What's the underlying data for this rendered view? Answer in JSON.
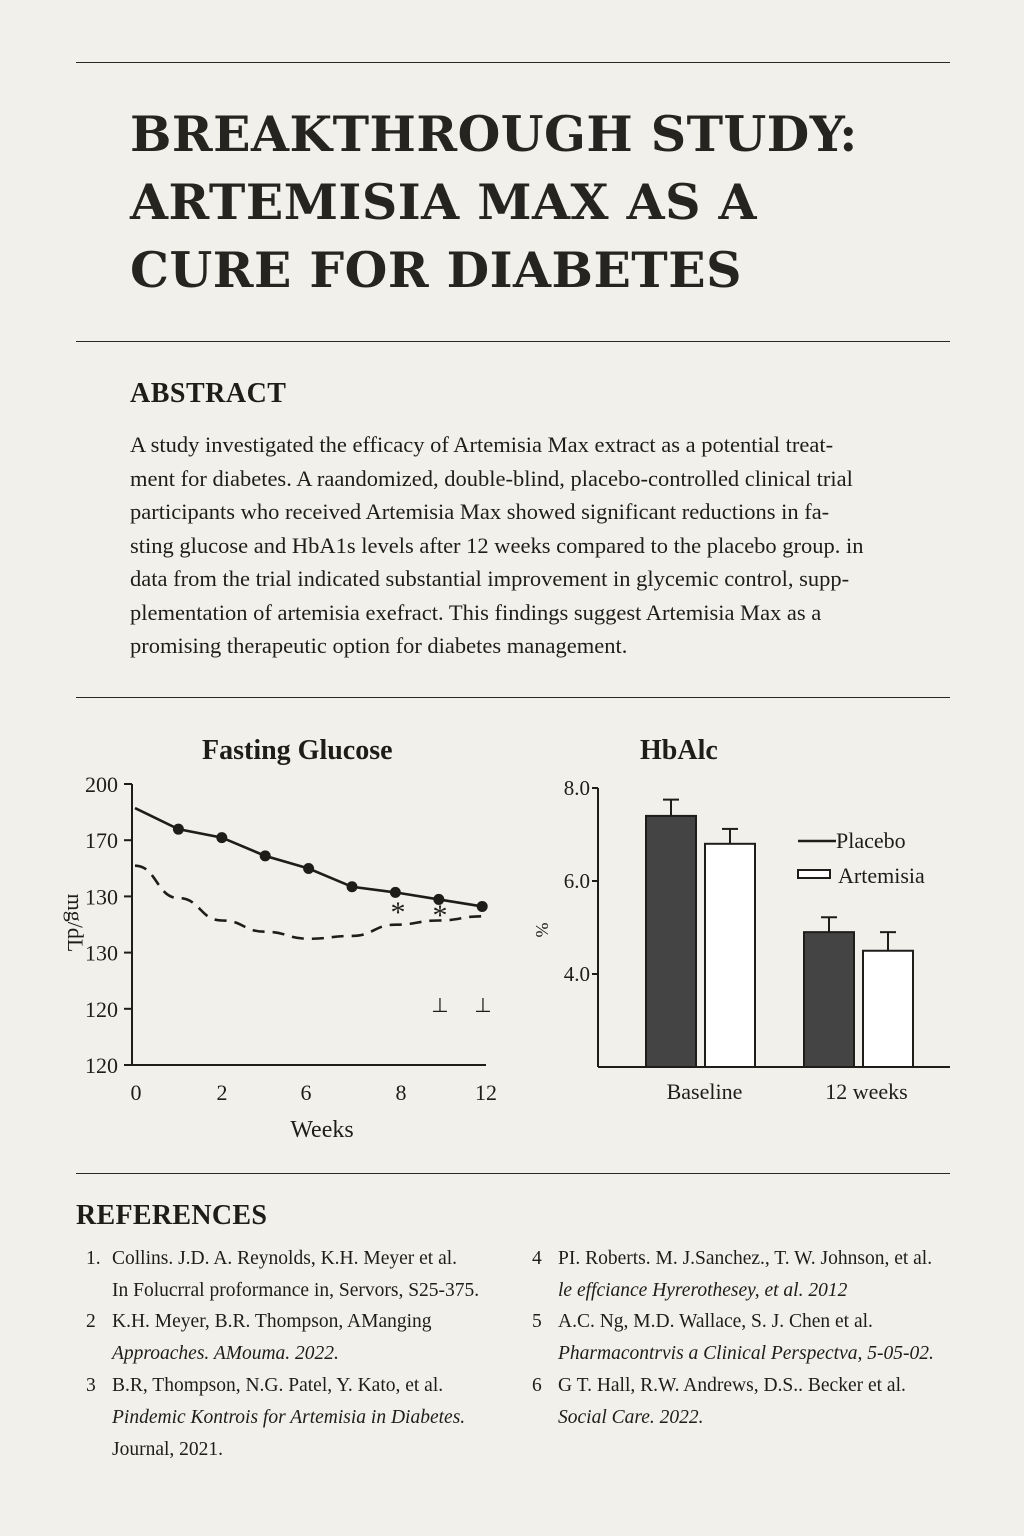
{
  "title_lines": [
    "BREAKTHROUGH STUDY:",
    "ARTEMISIA MAX AS A",
    "CURE FOR DIABETES"
  ],
  "abstract": {
    "heading": "ABSTRACT",
    "lines": [
      "A study investigated the efficacy of Artemisia Max extract as a potential treat-",
      "ment for diabetes. A raandomized, double-blind, placebo-controlled clinical trial",
      "participants who received Artemisia Max showed significant reductions in fa-",
      "sting glucose and HbA1s levels after 12 weeks compared to the placebo group. in",
      "data from the trial indicated substantial improvement in glycemic control, supp-",
      "plementation of artemisia exefract. This findings suggest Artemisia Max as a",
      "promising therapeutic option for diabetes management."
    ]
  },
  "chart_data": [
    {
      "type": "line",
      "title": "Fasting Glucose",
      "xlabel": "Weeks",
      "ylabel": "mg/dL",
      "x_ticks": [
        "0",
        "2",
        "6",
        "8",
        "12"
      ],
      "y_ticks": [
        "200",
        "170",
        "130",
        "130",
        "120",
        "120"
      ],
      "series": [
        {
          "style": "solid-markers",
          "x": [
            0,
            1,
            2,
            3,
            4,
            5,
            6,
            7,
            8
          ],
          "y": [
            180,
            165,
            159,
            146,
            137,
            124,
            120,
            115,
            110
          ]
        },
        {
          "style": "dashed",
          "x": [
            0,
            1,
            2,
            3,
            4,
            5,
            6,
            7,
            8
          ],
          "y": [
            139,
            116,
            100,
            92,
            87,
            89,
            97,
            100,
            103
          ]
        }
      ],
      "annotations": [
        "*",
        "*",
        "⊥",
        "⊥"
      ],
      "grid": false
    },
    {
      "type": "bar",
      "title": "HbAlc",
      "ylabel": "%",
      "categories": [
        "Baseline",
        "12 weeks"
      ],
      "y_ticks": [
        "8.0",
        "6.0",
        "4.0"
      ],
      "ylim": [
        2.0,
        8.0
      ],
      "series": [
        {
          "name": "Placebo",
          "values": [
            7.4,
            4.9
          ],
          "errors": [
            0.35,
            0.32
          ],
          "color": "#444444"
        },
        {
          "name": "Artemisia",
          "values": [
            6.8,
            4.5
          ],
          "errors": [
            0.32,
            0.4
          ],
          "color": "#ffffff"
        }
      ],
      "legend": "right"
    }
  ],
  "references": {
    "heading": "REFERENCES",
    "items": [
      {
        "num": "1.",
        "lines": [
          "Collins. J.D. A. Reynolds, K.H. Meyer et al.",
          "In Folucrral proformance in, Servors, S25-375."
        ],
        "italic": [
          false,
          false
        ]
      },
      {
        "num": "2",
        "lines": [
          "K.H. Meyer, B.R. Thompson, AManging",
          "Approaches. AMouma. 2022."
        ],
        "italic": [
          false,
          true
        ]
      },
      {
        "num": "3",
        "lines": [
          "B.R, Thompson, N.G. Patel, Y. Kato, et al.",
          "Pindemic Kontrois for Artemisia in Diabetes.",
          "Journal, 2021."
        ],
        "italic": [
          false,
          true,
          false
        ]
      },
      {
        "num": "4",
        "lines": [
          "PI. Roberts. M. J.Sanchez., T. W. Johnson, et al.",
          "le effciance Hyrerothesey, et al. 2012"
        ],
        "italic": [
          false,
          true
        ]
      },
      {
        "num": "5",
        "lines": [
          "A.C. Ng, M.D. Wallace, S. J. Chen et al.",
          "Pharmacontrvis a Clinical Perspectva, 5-05-02."
        ],
        "italic": [
          false,
          true
        ]
      },
      {
        "num": "6",
        "lines": [
          "G T. Hall, R.W. Andrews, D.S.. Becker et al.",
          "Social Care. 2022."
        ],
        "italic": [
          false,
          true
        ]
      }
    ]
  }
}
